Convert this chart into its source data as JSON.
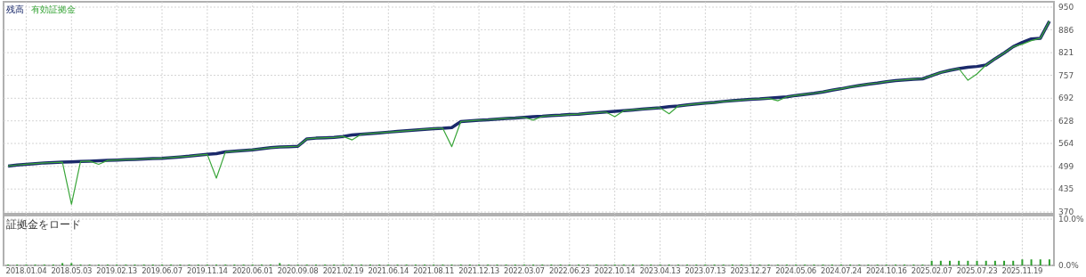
{
  "chart_data": [
    {
      "type": "line",
      "legend": "top left",
      "grid": true,
      "tick_labels": "y",
      "categories": [
        null,
        null,
        "2018.01.04",
        null,
        null,
        null,
        null,
        "2018.05.03",
        null,
        null,
        null,
        null,
        "2019.02.13",
        null,
        null,
        null,
        null,
        "2019.06.07",
        null,
        null,
        null,
        null,
        "2019.11.14",
        null,
        null,
        null,
        null,
        "2020.06.01",
        null,
        null,
        null,
        null,
        "2020.09.08",
        null,
        null,
        null,
        null,
        "2021.02.19",
        null,
        null,
        null,
        null,
        "2021.06.14",
        null,
        null,
        null,
        null,
        "2021.08.11",
        null,
        null,
        null,
        null,
        "2021.12.13",
        null,
        null,
        null,
        null,
        "2022.03.07",
        null,
        null,
        null,
        null,
        "2022.06.23",
        null,
        null,
        null,
        null,
        "2022.10.14",
        null,
        null,
        null,
        null,
        "2023.04.13",
        null,
        null,
        null,
        null,
        "2023.07.13",
        null,
        null,
        null,
        null,
        "2023.12.27",
        null,
        null,
        null,
        null,
        "2024.05.06",
        null,
        null,
        null,
        null,
        "2024.07.24",
        null,
        null,
        null,
        null,
        "2024.10.16",
        null,
        null,
        null,
        null,
        "2025.02.07",
        null,
        null,
        null,
        null,
        "2025.07.23",
        null,
        null,
        null,
        null,
        "2025.11.19",
        null,
        null,
        null
      ],
      "ylim": [
        370,
        950
      ],
      "yticks": [
        370,
        435,
        499,
        564,
        628,
        692,
        757,
        821,
        886,
        950
      ],
      "series": [
        {
          "name": "残高",
          "color": "#1b2a6b",
          "values": [
            500,
            503,
            505,
            507,
            509,
            510,
            511,
            512,
            513,
            514,
            515,
            516,
            517,
            518,
            519,
            520,
            521,
            522,
            524,
            526,
            528,
            531,
            533,
            535,
            540,
            542,
            544,
            546,
            549,
            552,
            554,
            555,
            556,
            577,
            579,
            580,
            581,
            584,
            588,
            590,
            592,
            594,
            596,
            598,
            600,
            602,
            604,
            606,
            607,
            609,
            626,
            628,
            630,
            631,
            633,
            635,
            636,
            638,
            640,
            641,
            643,
            644,
            646,
            647,
            649,
            651,
            653,
            655,
            657,
            659,
            661,
            663,
            665,
            668,
            670,
            673,
            676,
            678,
            680,
            683,
            685,
            687,
            689,
            690,
            692,
            694,
            696,
            700,
            703,
            706,
            710,
            715,
            719,
            724,
            728,
            732,
            735,
            739,
            742,
            744,
            746,
            747,
            756,
            765,
            771,
            776,
            780,
            782,
            786,
            804,
            820,
            838,
            850,
            860,
            862,
            910
          ]
        },
        {
          "name": "有効証拠金",
          "color": "#3aa63a",
          "values": [
            500,
            503,
            505,
            507,
            509,
            510,
            511,
            392,
            513,
            514,
            505,
            516,
            517,
            518,
            519,
            520,
            521,
            522,
            524,
            526,
            528,
            531,
            533,
            466,
            540,
            542,
            544,
            546,
            549,
            552,
            554,
            555,
            556,
            577,
            579,
            580,
            581,
            584,
            574,
            590,
            592,
            594,
            596,
            598,
            600,
            602,
            604,
            606,
            607,
            555,
            626,
            628,
            630,
            631,
            633,
            635,
            636,
            638,
            630,
            641,
            643,
            644,
            646,
            647,
            649,
            651,
            653,
            640,
            657,
            659,
            661,
            663,
            665,
            648,
            670,
            673,
            676,
            678,
            680,
            683,
            685,
            687,
            689,
            690,
            692,
            685,
            696,
            700,
            703,
            706,
            710,
            715,
            719,
            724,
            728,
            732,
            735,
            739,
            742,
            744,
            746,
            747,
            756,
            765,
            771,
            776,
            743,
            761,
            786,
            804,
            820,
            838,
            845,
            855,
            862,
            910
          ]
        }
      ]
    },
    {
      "type": "bar",
      "title": "証拠金をロード",
      "grid": true,
      "color": "#2e9e2e",
      "categories": [
        null,
        null,
        "2018.01.04",
        null,
        null,
        null,
        null,
        "2018.05.03",
        null,
        null,
        null,
        null,
        "2019.02.13",
        null,
        null,
        null,
        null,
        "2019.06.07",
        null,
        null,
        null,
        null,
        "2019.11.14",
        null,
        null,
        null,
        null,
        "2020.06.01",
        null,
        null,
        null,
        null,
        "2020.09.08",
        null,
        null,
        null,
        null,
        "2021.02.19",
        null,
        null,
        null,
        null,
        "2021.06.14",
        null,
        null,
        null,
        null,
        "2021.08.11",
        null,
        null,
        null,
        null,
        "2021.12.13",
        null,
        null,
        null,
        null,
        "2022.03.07",
        null,
        null,
        null,
        null,
        "2022.06.23",
        null,
        null,
        null,
        null,
        "2022.10.14",
        null,
        null,
        null,
        null,
        "2023.04.13",
        null,
        null,
        null,
        null,
        "2023.07.13",
        null,
        null,
        null,
        null,
        "2023.12.27",
        null,
        null,
        null,
        null,
        "2024.05.06",
        null,
        null,
        null,
        null,
        "2024.07.24",
        null,
        null,
        null,
        null,
        "2024.10.16",
        null,
        null,
        null,
        null,
        "2025.02.07",
        null,
        null,
        null,
        null,
        "2025.07.23",
        null,
        null,
        null,
        null,
        "2025.11.19",
        null,
        null,
        null
      ],
      "ylim": [
        0,
        10
      ],
      "yticks": [
        {
          "value": 0,
          "label": "0.0%"
        },
        {
          "value": 10,
          "label": "10.0%"
        }
      ],
      "values": [
        0.2,
        0.2,
        0.2,
        0.2,
        0.2,
        0.2,
        0.5,
        0.5,
        0.2,
        0.2,
        0.2,
        0.2,
        0.2,
        0.2,
        0.2,
        0.2,
        0.2,
        0.2,
        0.2,
        0.2,
        0.2,
        0.2,
        0.2,
        0.2,
        0.2,
        0.2,
        0.2,
        0.2,
        0.2,
        0.2,
        0.5,
        0.2,
        0.2,
        0.2,
        0.2,
        0.2,
        0.2,
        0.2,
        0.2,
        0.2,
        0.2,
        0.2,
        0.2,
        0.2,
        0.2,
        0.2,
        0.2,
        0.2,
        0.2,
        0.2,
        0.2,
        0.2,
        0.2,
        0.2,
        0.2,
        0.2,
        0.2,
        0.2,
        0.2,
        0.2,
        0.2,
        0.2,
        0.2,
        0.2,
        0.2,
        0.2,
        0.2,
        0.2,
        0.2,
        0.2,
        0.2,
        0.2,
        0.2,
        0.2,
        0.2,
        0.2,
        0.2,
        0.2,
        0.2,
        0.2,
        0.2,
        0.2,
        0.2,
        0.2,
        0.2,
        0.2,
        0.2,
        0.2,
        0.2,
        0.2,
        0.2,
        0.2,
        0.2,
        0.2,
        0.2,
        0.2,
        0.2,
        0.2,
        0.2,
        0.2,
        0.2,
        0.2,
        1.0,
        1.0,
        1.0,
        1.0,
        1.0,
        1.0,
        1.0,
        1.0,
        1.0,
        1.0,
        1.3,
        1.3,
        1.3,
        1.3
      ]
    }
  ]
}
